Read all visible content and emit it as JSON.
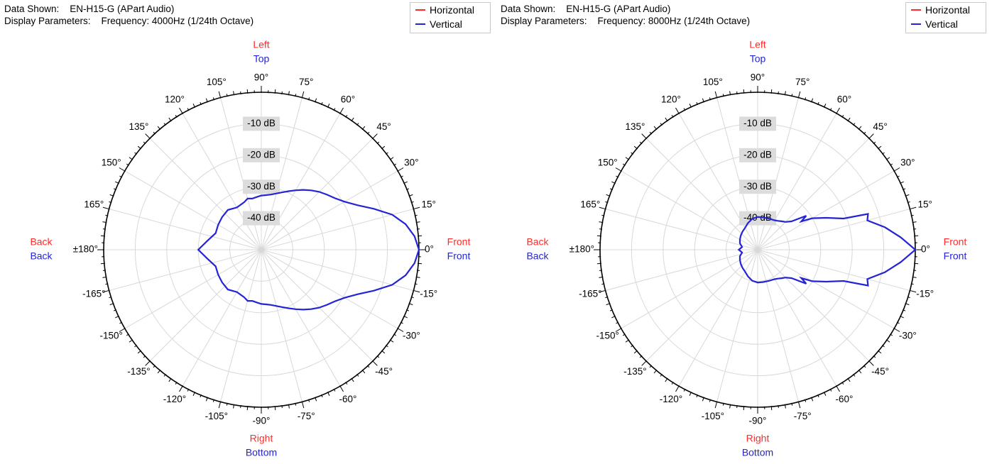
{
  "panels": [
    {
      "info_line1": "Data Shown:    EN-H15-G (APart Audio)",
      "info_line2": "Display Parameters:    Frequency: 4000Hz (1/24th Octave)"
    },
    {
      "info_line1": "Data Shown:    EN-H15-G (APart Audio)",
      "info_line2": "Display Parameters:    Frequency: 8000Hz (1/24th Octave)"
    }
  ],
  "legend": {
    "horizontal": "Horizontal",
    "vertical": "Vertical"
  },
  "colors": {
    "horizontal": "#ff2a2a",
    "vertical": "#2424d6",
    "grid": "#d8d8d8",
    "axis": "#000000"
  },
  "direction_labels": {
    "top_red": "Left",
    "top_blue": "Top",
    "bottom_red": "Right",
    "bottom_blue": "Bottom",
    "left_red": "Back",
    "left_blue": "Back",
    "right_red": "Front",
    "right_blue": "Front"
  },
  "chart_data": [
    {
      "type": "polar",
      "title": "",
      "angle_labels": [
        "0°",
        "15°",
        "30°",
        "45°",
        "60°",
        "75°",
        "90°",
        "105°",
        "120°",
        "135°",
        "150°",
        "165°",
        "±180°",
        "-165°",
        "-150°",
        "-135°",
        "-120°",
        "-105°",
        "-90°",
        "-75°",
        "-60°",
        "-45°",
        "-30°",
        "-15°"
      ],
      "angle_values": [
        0,
        15,
        30,
        45,
        60,
        75,
        90,
        105,
        120,
        135,
        150,
        165,
        180,
        -165,
        -150,
        -135,
        -120,
        -105,
        -90,
        -75,
        -60,
        -45,
        -30,
        -15
      ],
      "radial_labels": [
        "-10 dB",
        "-20 dB",
        "-30 dB",
        "-40 dB"
      ],
      "radial_values": [
        -10,
        -20,
        -30,
        -40
      ],
      "rlim": [
        -50,
        0
      ],
      "legend_position": "top-right",
      "series": [
        {
          "name": "Vertical",
          "angles": [
            0,
            5,
            10,
            15,
            20,
            25,
            30,
            35,
            40,
            45,
            50,
            55,
            60,
            65,
            70,
            75,
            80,
            85,
            90,
            95,
            100,
            105,
            110,
            120,
            130,
            140,
            150,
            160,
            170,
            180,
            190,
            200,
            210,
            220,
            230,
            240,
            250,
            255,
            260,
            265,
            270,
            275,
            280,
            285,
            290,
            295,
            300,
            305,
            310,
            315,
            320,
            325,
            330,
            335,
            340,
            345,
            350,
            355
          ],
          "values": [
            0,
            -1.2,
            -3.5,
            -7,
            -12,
            -16.5,
            -19.5,
            -21.5,
            -22.8,
            -24,
            -25.4,
            -26.8,
            -28.2,
            -29.5,
            -30.6,
            -31.5,
            -32.2,
            -32.6,
            -32.8,
            -33.2,
            -33.5,
            -33.2,
            -34,
            -34.5,
            -33.5,
            -33.8,
            -34.2,
            -34.6,
            -32.8,
            -30,
            -32.8,
            -34.6,
            -34.2,
            -33.8,
            -33.5,
            -34.5,
            -34,
            -33.2,
            -33.5,
            -33.2,
            -32.8,
            -32.6,
            -32.2,
            -31.5,
            -30.6,
            -29.5,
            -28.2,
            -26.8,
            -25.4,
            -24,
            -22.8,
            -21.5,
            -19.5,
            -16.5,
            -12,
            -7,
            -3.5,
            -1.2
          ]
        },
        {
          "name": "Vertical",
          "angles": [
            0,
            5,
            10,
            15,
            18,
            20,
            25,
            30,
            33,
            35,
            40,
            45,
            50,
            55,
            60,
            70,
            80,
            90,
            100,
            110,
            120,
            130,
            140,
            150,
            160,
            170,
            180,
            190,
            200,
            210,
            220,
            230,
            240,
            250,
            260,
            270,
            280,
            290,
            300,
            305,
            310,
            315,
            320,
            325,
            327,
            330,
            335,
            340,
            342,
            345,
            350,
            355
          ],
          "values": [
            0,
            -4.5,
            -9,
            -14,
            -13.2,
            -21,
            -26,
            -30,
            -33.5,
            -31.2,
            -36,
            -37.5,
            -38.2,
            -38.8,
            -39.2,
            -39.5,
            -39.6,
            -39.6,
            -40,
            -41,
            -42,
            -42.5,
            -43,
            -43.5,
            -44,
            -45,
            -44,
            -45,
            -44,
            -43.5,
            -43,
            -42.5,
            -42,
            -41,
            -40,
            -39.6,
            -39.6,
            -39.5,
            -39.2,
            -38.8,
            -38.2,
            -37.5,
            -36,
            -31.2,
            -33.5,
            -30,
            -26,
            -21,
            -13.2,
            -14,
            -9,
            -4.5
          ]
        }
      ]
    }
  ]
}
